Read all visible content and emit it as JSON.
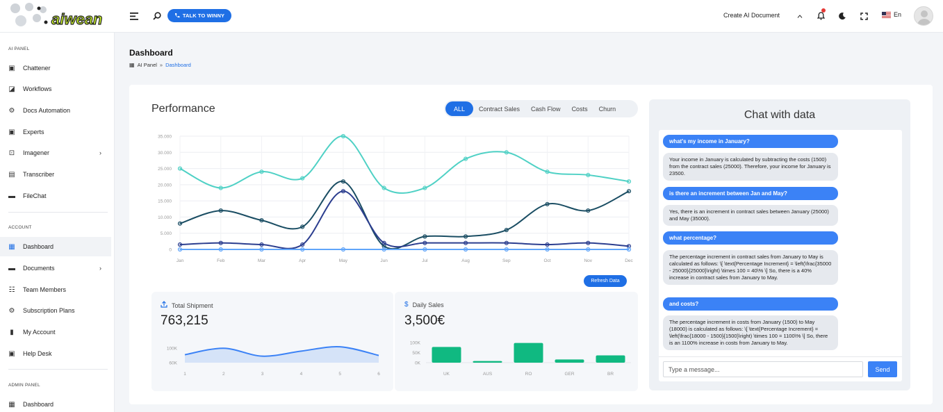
{
  "app": {
    "brand": "aiwean"
  },
  "topbar": {
    "talk_button": "TALK TO WINNY",
    "create_doc": "Create AI Document",
    "language": "En"
  },
  "sidebar": {
    "sections": [
      {
        "label": "AI PANEL"
      },
      {
        "label": "ACCOUNT"
      },
      {
        "label": "ADMIN PANEL"
      }
    ],
    "ai_items": [
      {
        "label": "Chattener",
        "icon": "chat-icon"
      },
      {
        "label": "Workflows",
        "icon": "ai-icon"
      },
      {
        "label": "Docs Automation",
        "icon": "gear-icon"
      },
      {
        "label": "Experts",
        "icon": "chat-icon"
      },
      {
        "label": "Imagener",
        "icon": "image-icon"
      },
      {
        "label": "Transcriber",
        "icon": "doc-icon"
      },
      {
        "label": "FileChat",
        "icon": "folder-icon"
      }
    ],
    "account_items": [
      {
        "label": "Dashboard",
        "icon": "grid-icon"
      },
      {
        "label": "Documents",
        "icon": "folder-icon"
      },
      {
        "label": "Team Members",
        "icon": "team-icon"
      },
      {
        "label": "Subscription Plans",
        "icon": "gear-icon"
      },
      {
        "label": "My Account",
        "icon": "user-icon"
      },
      {
        "label": "Help Desk",
        "icon": "chat-icon"
      }
    ],
    "admin_items": [
      {
        "label": "Dashboard",
        "icon": "grid-icon"
      }
    ]
  },
  "page": {
    "title": "Dashboard",
    "breadcrumb": {
      "root": "AI Panel",
      "sep": "»",
      "current": "Dashboard"
    }
  },
  "performance": {
    "title": "Performance",
    "tabs": [
      "ALL",
      "Contract Sales",
      "Cash Flow",
      "Costs",
      "Churn"
    ],
    "active_tab": "ALL",
    "refresh_label": "Refresh Data"
  },
  "chart_data": [
    {
      "type": "line",
      "categories": [
        "Jan",
        "Feb",
        "Mar",
        "Apr",
        "May",
        "Jun",
        "Jul",
        "Aug",
        "Sep",
        "Oct",
        "Nov",
        "Dec"
      ],
      "ylim": [
        0,
        35000
      ],
      "yticks": [
        "0",
        "5.000",
        "10.000",
        "15.000",
        "20.000",
        "25.000",
        "30.000",
        "35.000"
      ],
      "grid": true,
      "series": [
        {
          "color": "#4fd1c5",
          "values": [
            25000,
            19000,
            24000,
            22000,
            35000,
            19000,
            19000,
            28000,
            30000,
            24000,
            23000,
            21000
          ]
        },
        {
          "color": "#1a4d63",
          "values": [
            8000,
            12000,
            9000,
            7000,
            21000,
            1000,
            4000,
            4000,
            6000,
            14000,
            12000,
            18000
          ]
        },
        {
          "color": "#2c3e8f",
          "values": [
            1500,
            2000,
            1500,
            1500,
            18000,
            2000,
            2000,
            2000,
            2000,
            1500,
            2000,
            1000
          ]
        },
        {
          "color": "#60a5fa",
          "values": [
            0,
            0,
            0,
            0,
            0,
            0,
            0,
            0,
            0,
            0,
            0,
            0
          ]
        }
      ]
    },
    {
      "type": "area",
      "title": "Total Shipment",
      "categories": [
        "1",
        "2",
        "3",
        "4",
        "5",
        "6"
      ],
      "yticks": [
        "60K",
        "100K"
      ],
      "values": [
        82,
        100,
        78,
        92,
        104,
        80
      ]
    },
    {
      "type": "bar",
      "title": "Daily Sales",
      "categories": [
        "UK",
        "AUS",
        "RO",
        "GER",
        "BR"
      ],
      "yticks": [
        "0K",
        "50K",
        "100K"
      ],
      "ylim": [
        0,
        100
      ],
      "values": [
        78,
        8,
        98,
        16,
        36
      ]
    }
  ],
  "shipment": {
    "title": "Total Shipment",
    "value": "763,215"
  },
  "sales": {
    "title": "Daily Sales",
    "value": "3,500€"
  },
  "chat": {
    "title": "Chat with data",
    "messages": [
      {
        "role": "user",
        "text": "what's my income in January?"
      },
      {
        "role": "bot",
        "text": "Your income in January is calculated by subtracting the costs (1500) from the contract sales (25000). Therefore, your income for January is 23500."
      },
      {
        "role": "user",
        "text": "is there an increment between Jan and May?"
      },
      {
        "role": "bot",
        "text": "Yes, there is an increment in contract sales between January (25000) and May (35000)."
      },
      {
        "role": "user",
        "text": "what percentage?"
      },
      {
        "role": "bot",
        "text": "The percentage increment in contract sales from January to May is calculated as follows: \\[ \\text{Percentage Increment} = \\left(\\frac{35000 - 25000}{25000}\\right) \\times 100 = 40\\% \\] So, there is a 40% increase in contract sales from January to May."
      },
      {
        "role": "user",
        "text": "and costs?"
      },
      {
        "role": "bot",
        "text": "The percentage increment in costs from January (1500) to May (18000) is calculated as follows: \\[ \\text{Percentage Increment} = \\left(\\frac{18000 - 1500}{1500}\\right) \\times 100 = 1100\\% \\] So, there is an 1100% increase in costs from January to May."
      }
    ],
    "input_placeholder": "Type a message...",
    "send_label": "Send"
  }
}
